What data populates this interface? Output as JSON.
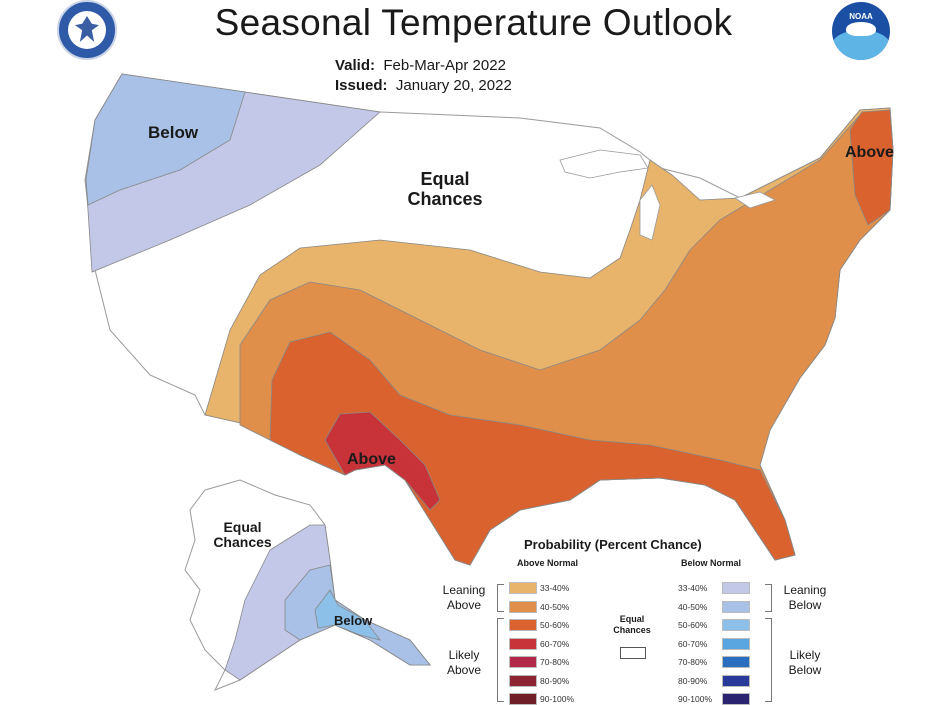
{
  "header": {
    "title": "Seasonal Temperature Outlook",
    "valid_label": "Valid:",
    "valid_value": "Feb-Mar-Apr 2022",
    "issued_label": "Issued:",
    "issued_value": "January 20, 2022"
  },
  "logos": {
    "left": "department-of-commerce-seal",
    "right": "noaa-logo",
    "noaa_text": "NOAA"
  },
  "map_labels": {
    "northwest": "Below",
    "central_line1": "Equal",
    "central_line2": "Chances",
    "northeast": "Above",
    "southwest": "Above",
    "alaska_equal_line1": "Equal",
    "alaska_equal_line2": "Chances",
    "alaska_below": "Below"
  },
  "legend": {
    "title": "Probability (Percent Chance)",
    "above_header": "Above Normal",
    "below_header": "Below Normal",
    "equal_line1": "Equal",
    "equal_line2": "Chances",
    "leaning_above_1": "Leaning",
    "leaning_above_2": "Above",
    "likely_above_1": "Likely",
    "likely_above_2": "Above",
    "leaning_below_1": "Leaning",
    "leaning_below_2": "Below",
    "likely_below_1": "Likely",
    "likely_below_2": "Below",
    "above": [
      {
        "range": "33-40%",
        "color": "#e8b36a"
      },
      {
        "range": "40-50%",
        "color": "#e08f4a"
      },
      {
        "range": "50-60%",
        "color": "#d9622e"
      },
      {
        "range": "60-70%",
        "color": "#c8333a"
      },
      {
        "range": "70-80%",
        "color": "#b3294a"
      },
      {
        "range": "80-90%",
        "color": "#8c2432"
      },
      {
        "range": "90-100%",
        "color": "#6e1f27"
      }
    ],
    "below": [
      {
        "range": "33-40%",
        "color": "#c3c8e8"
      },
      {
        "range": "40-50%",
        "color": "#a9c1e6"
      },
      {
        "range": "50-60%",
        "color": "#8cc0e8"
      },
      {
        "range": "60-70%",
        "color": "#5aa6e0"
      },
      {
        "range": "70-80%",
        "color": "#2a6ec0"
      },
      {
        "range": "80-90%",
        "color": "#2a3a9a"
      },
      {
        "range": "90-100%",
        "color": "#2a2470"
      }
    ],
    "equal_color": "#ffffff"
  }
}
